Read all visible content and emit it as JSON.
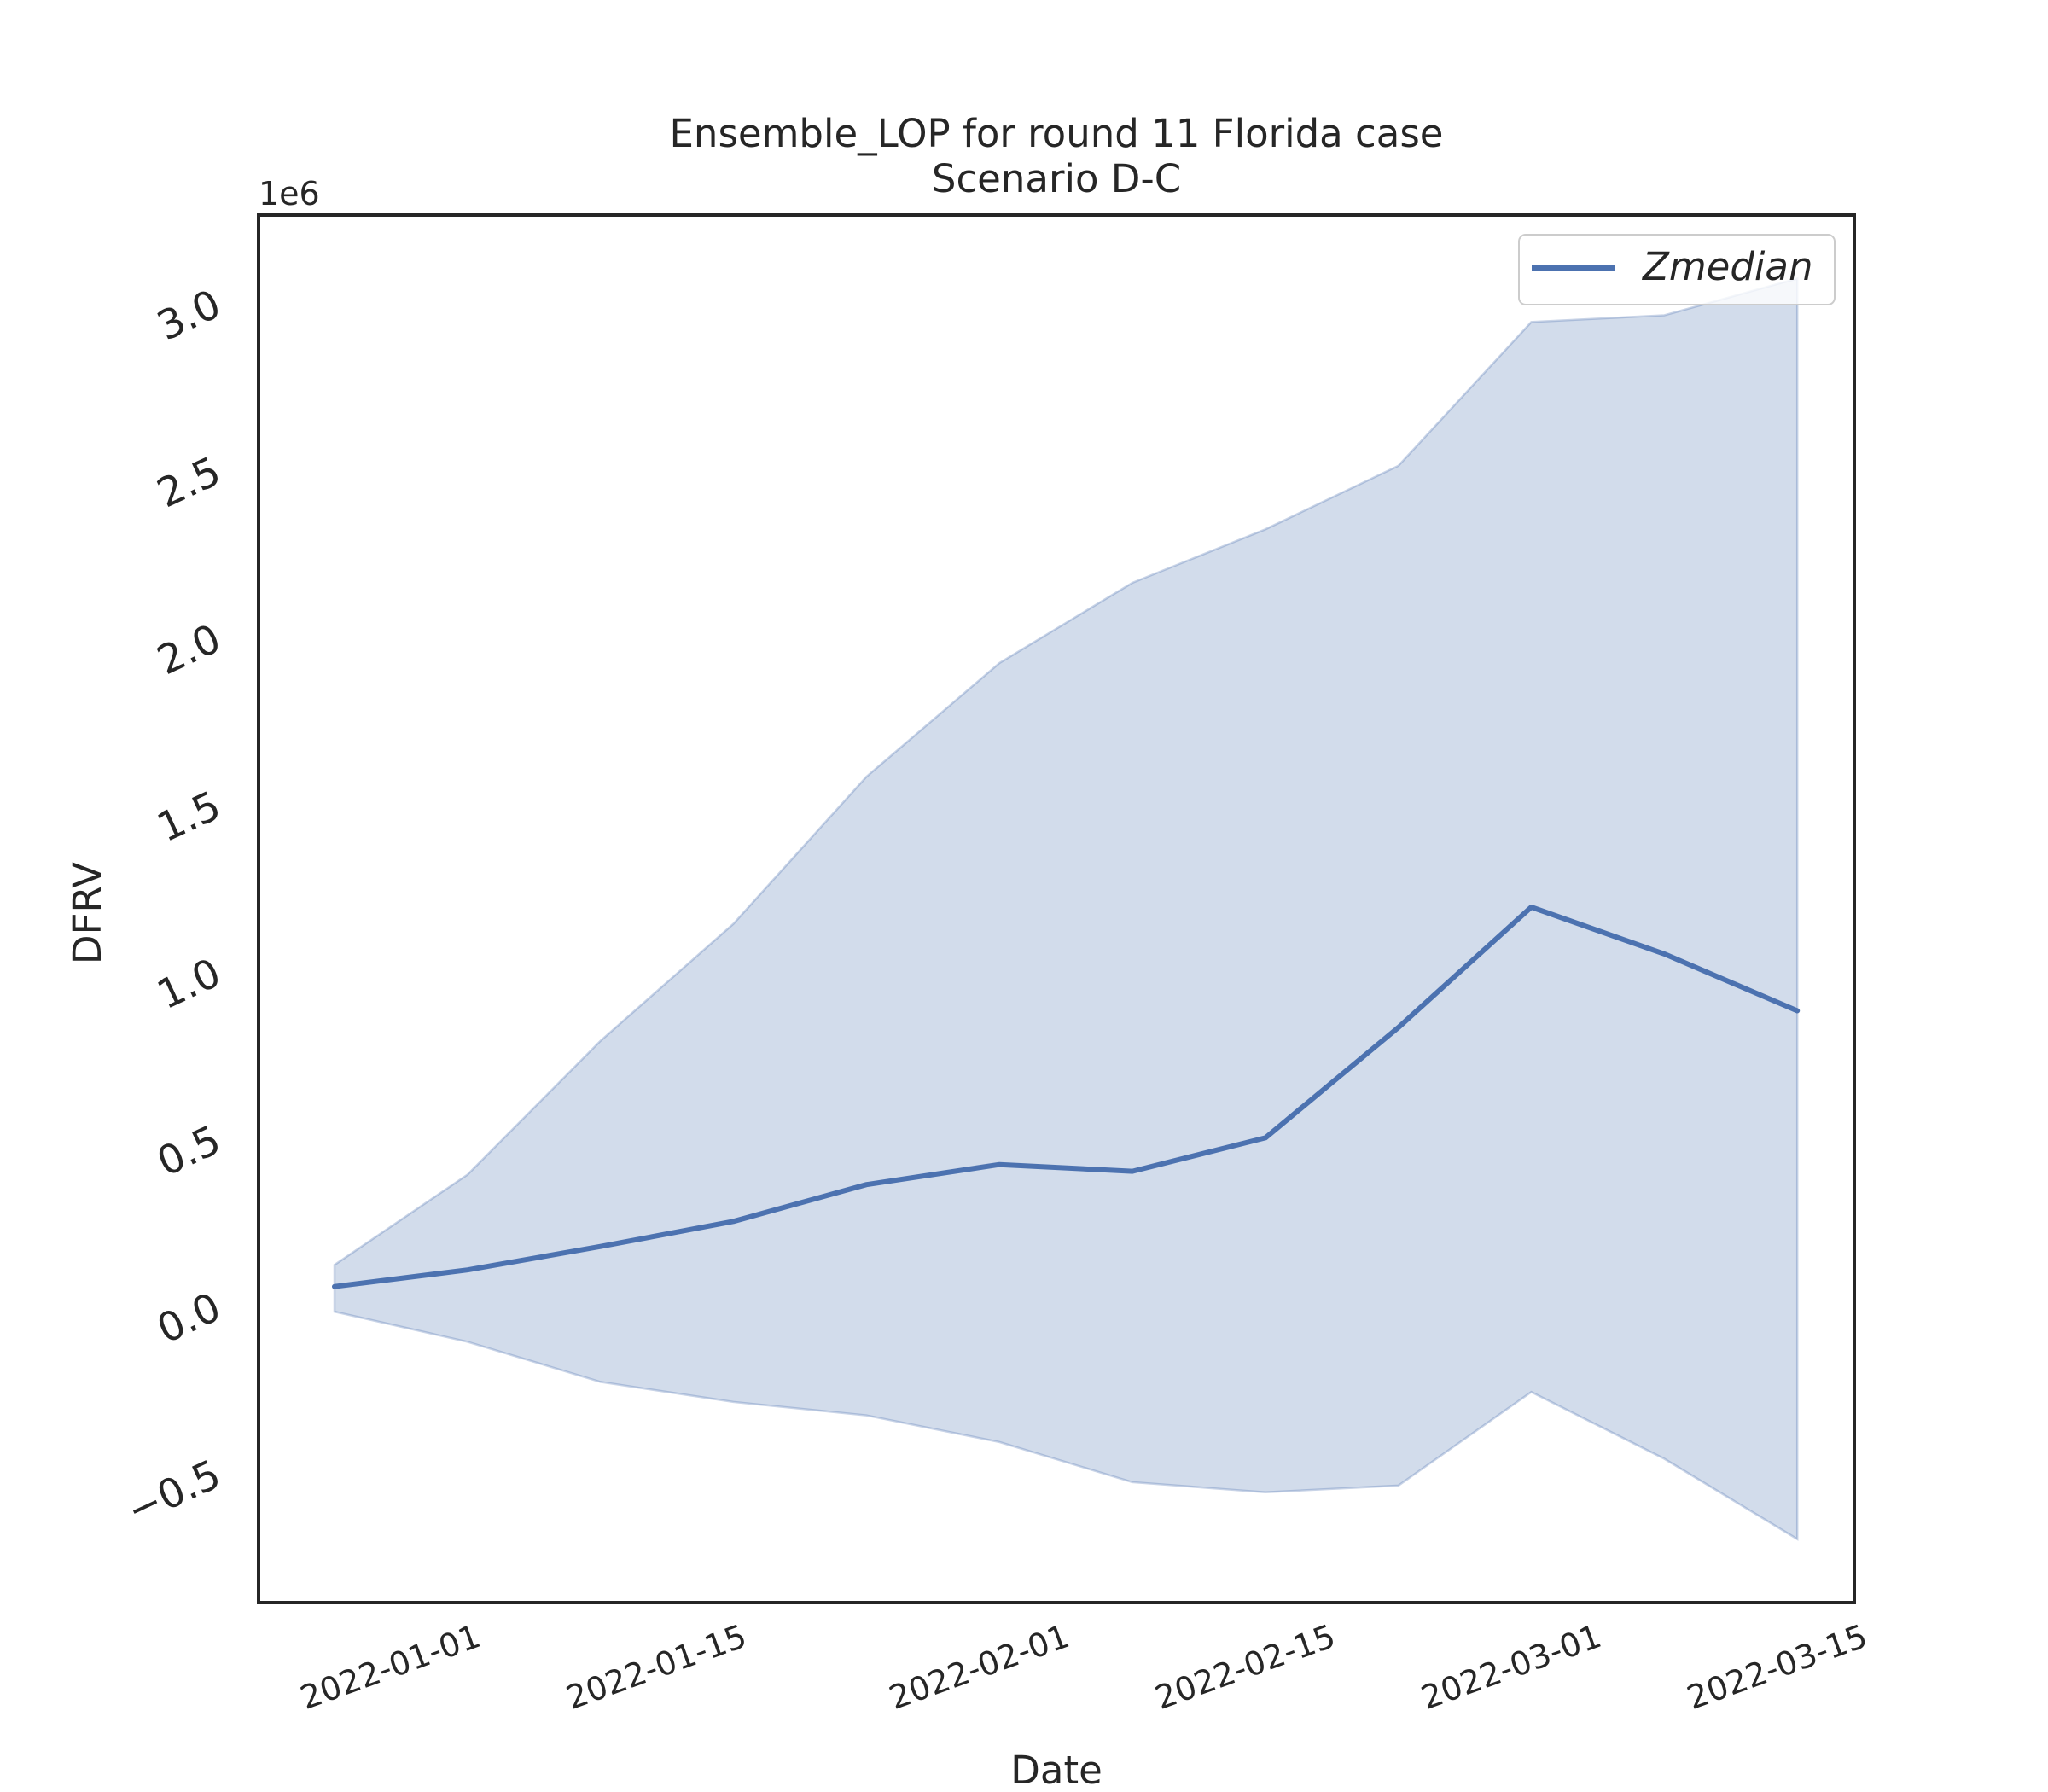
{
  "chart_data": {
    "type": "line",
    "title": "Ensemble_LOP for round 11 Florida case",
    "subtitle": "Scenario D-C",
    "xlabel": "Date",
    "ylabel": "DFRV",
    "y_offset_label": "1e6",
    "y_scale": 1000000,
    "xlim": [
      "2021-12-22",
      "2022-03-16"
    ],
    "ylim": [
      -900000,
      3250000
    ],
    "x_ticks": [
      "2022-01-01",
      "2022-01-15",
      "2022-02-01",
      "2022-02-15",
      "2022-03-01",
      "2022-03-15"
    ],
    "x_tick_rotation": -20,
    "y_ticks": [
      -500000,
      0,
      500000,
      1000000,
      1500000,
      2000000,
      2500000,
      3000000
    ],
    "y_tick_labels": [
      "−0.5",
      "0.0",
      "0.5",
      "1.0",
      "1.5",
      "2.0",
      "2.5",
      "3.0"
    ],
    "y_tick_rotation": -25,
    "x": [
      "2021-12-26",
      "2022-01-02",
      "2022-01-09",
      "2022-01-16",
      "2022-01-23",
      "2022-01-30",
      "2022-02-06",
      "2022-02-13",
      "2022-02-20",
      "2022-02-27",
      "2022-03-06",
      "2022-03-13"
    ],
    "series": [
      {
        "name": "Zmedian",
        "color": "#4c72b0",
        "values": [
          45000,
          95000,
          165000,
          240000,
          350000,
          410000,
          390000,
          490000,
          820000,
          1180000,
          1040000,
          870000
        ]
      }
    ],
    "band": {
      "color": "#4c72b0",
      "opacity": 0.25,
      "lower": [
        -30000,
        -120000,
        -240000,
        -300000,
        -340000,
        -420000,
        -540000,
        -570000,
        -550000,
        -270000,
        -470000,
        -710000
      ],
      "upper": [
        110000,
        380000,
        780000,
        1130000,
        1570000,
        1910000,
        2150000,
        2310000,
        2500000,
        2930000,
        2950000,
        3060000
      ]
    },
    "grid": false,
    "legend": {
      "position": "top-right",
      "entries": [
        "Zmedian"
      ]
    }
  }
}
